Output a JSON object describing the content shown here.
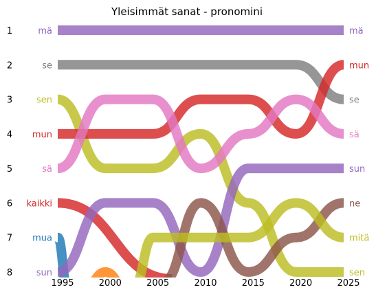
{
  "chart_data": {
    "type": "line",
    "title": "Yleisimmät sanat - pronomini",
    "xlabel": "",
    "ylabel": "",
    "xlim": [
      1995,
      2025
    ],
    "ylim": [
      1,
      8
    ],
    "y_inverted": true,
    "grid": false,
    "legend": "inline labels at left and right ends",
    "x_ticks": [
      "1995",
      "2000",
      "2005",
      "2010",
      "2015",
      "2020",
      "2025"
    ],
    "y_ticks": [
      "1",
      "2",
      "3",
      "4",
      "5",
      "6",
      "7",
      "8"
    ],
    "series": [
      {
        "name": "mä",
        "color": "#9467bd",
        "left_label": "mä",
        "right_label": "mä",
        "points": [
          [
            1995,
            1
          ],
          [
            2025,
            1
          ]
        ]
      },
      {
        "name": "se",
        "color": "#7f7f7f",
        "left_label": "se",
        "right_label": "se",
        "points": [
          [
            1995,
            2
          ],
          [
            2020,
            2
          ],
          [
            2025,
            3
          ]
        ]
      },
      {
        "name": "sen",
        "color": "#bcbd22",
        "left_label": "sen",
        "right_label": "sen",
        "points": [
          [
            1995,
            3
          ],
          [
            2000,
            5
          ],
          [
            2005,
            5
          ],
          [
            2010,
            4
          ],
          [
            2015,
            6
          ],
          [
            2020,
            8
          ],
          [
            2025,
            8
          ]
        ]
      },
      {
        "name": "mun",
        "color": "#d62728",
        "left_label": "mun",
        "right_label": "mun",
        "points": [
          [
            1995,
            4
          ],
          [
            2005,
            4
          ],
          [
            2010,
            3
          ],
          [
            2015,
            3
          ],
          [
            2020,
            4
          ],
          [
            2025,
            2
          ]
        ]
      },
      {
        "name": "sä",
        "color": "#e377c2",
        "left_label": "sä",
        "right_label": "sä",
        "points": [
          [
            1995,
            5
          ],
          [
            2000,
            3
          ],
          [
            2005,
            3
          ],
          [
            2010,
            5
          ],
          [
            2015,
            4
          ],
          [
            2020,
            3
          ],
          [
            2025,
            4
          ]
        ]
      },
      {
        "name": "kaikki",
        "color": "#d62728",
        "left_label": "kaikki",
        "right_label": "",
        "points": [
          [
            1995,
            6
          ],
          [
            2007,
            8.2
          ]
        ]
      },
      {
        "name": "mua",
        "color": "#1f77b4",
        "left_label": "mua",
        "right_label": "",
        "points": [
          [
            1995,
            7
          ],
          [
            1996,
            8.4
          ]
        ]
      },
      {
        "name": "sun",
        "color": "#9467bd",
        "left_label": "sun",
        "right_label": "sun",
        "points": [
          [
            1995,
            8
          ],
          [
            2000,
            6
          ],
          [
            2005,
            6
          ],
          [
            2010,
            8
          ],
          [
            2015,
            5
          ],
          [
            2025,
            5
          ]
        ]
      },
      {
        "name": "ne",
        "color": "#8c564b",
        "left_label": "",
        "right_label": "ne",
        "points": [
          [
            2006,
            8.3
          ],
          [
            2010,
            6
          ],
          [
            2015,
            8
          ],
          [
            2020,
            7
          ],
          [
            2025,
            6
          ]
        ]
      },
      {
        "name": "mitä",
        "color": "#bcbd22",
        "left_label": "",
        "right_label": "mitä",
        "points": [
          [
            2003,
            8.4
          ],
          [
            2005,
            7
          ],
          [
            2015,
            7
          ],
          [
            2020,
            6
          ],
          [
            2025,
            7
          ]
        ]
      },
      {
        "name": "",
        "color": "#ff7f0e",
        "left_label": "",
        "right_label": "",
        "points": [
          [
            1998,
            8.4
          ],
          [
            2000,
            8
          ],
          [
            2002,
            8.4
          ]
        ]
      }
    ]
  }
}
